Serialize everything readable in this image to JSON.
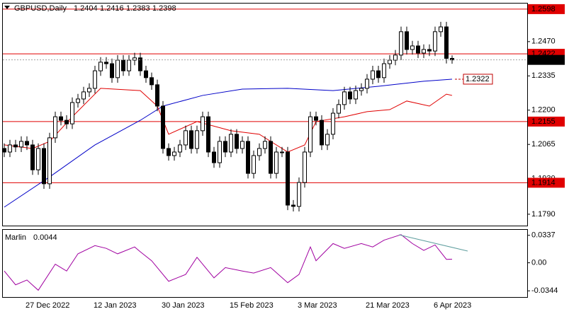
{
  "chart_data": [
    {
      "type": "candlestick",
      "title": "GBPUSD,Daily",
      "categories": [
        null,
        null,
        null,
        null,
        "27 Dec 2022",
        null,
        null,
        null,
        null,
        null,
        null,
        null,
        null,
        null,
        null,
        null,
        "12 Jan 2023",
        null,
        null,
        null,
        null,
        null,
        null,
        null,
        null,
        null,
        null,
        null,
        "30 Jan 2023",
        null,
        null,
        null,
        null,
        null,
        null,
        null,
        null,
        null,
        null,
        null,
        "15 Feb 2023",
        null,
        null,
        null,
        null,
        null,
        null,
        null,
        null,
        null,
        null,
        null,
        "3 Mar 2023",
        null,
        null,
        null,
        null,
        null,
        null,
        null,
        null,
        null,
        null,
        null,
        "21 Mar 2023",
        null,
        null,
        null,
        null,
        null,
        null,
        null,
        null,
        null,
        null,
        null,
        "6 Apr 2023",
        null,
        null,
        null
      ],
      "open": [
        1.2049,
        1.2035,
        1.2063,
        1.2055,
        1.2077,
        1.2063,
        1.1965,
        1.2049,
        1.191,
        1.2091,
        1.2174,
        1.216,
        1.2146,
        1.223,
        1.2244,
        1.2272,
        1.2286,
        1.2355,
        1.2389,
        1.2383,
        1.2328,
        1.2397,
        1.2355,
        1.2397,
        1.2406,
        1.2355,
        1.2328,
        1.23,
        1.2216,
        1.2049,
        1.2021,
        1.2035,
        1.2063,
        1.2119,
        1.2049,
        1.2119,
        1.2174,
        1.2035,
        1.1993,
        1.2077,
        1.2035,
        1.2105,
        1.2049,
        1.2077,
        1.1951,
        1.2021,
        1.2049,
        1.2077,
        1.1951,
        1.2035,
        1.2035,
        1.1826,
        1.1821,
        1.1915,
        1.2035,
        1.2174,
        1.216,
        1.2063,
        1.2105,
        1.2188,
        1.2222,
        1.2272,
        1.2244,
        1.2277,
        1.2286,
        1.2322,
        1.2355,
        1.2328,
        1.2383,
        1.2397,
        1.2417,
        1.2509,
        1.2439,
        1.2453,
        1.2425,
        1.2439,
        1.2433,
        1.2509,
        1.2528,
        1.2404
      ],
      "high": [
        1.2069,
        1.2083,
        1.2083,
        1.2097,
        1.2097,
        1.2083,
        1.2069,
        1.2069,
        1.2111,
        1.2194,
        1.2194,
        1.218,
        1.225,
        1.2264,
        1.2292,
        1.2306,
        1.2375,
        1.2409,
        1.2409,
        1.2403,
        1.2417,
        1.2417,
        1.2417,
        1.2426,
        1.2426,
        1.2375,
        1.2348,
        1.232,
        1.2236,
        1.2069,
        1.2055,
        1.2083,
        1.2139,
        1.2139,
        1.2139,
        1.2194,
        1.2194,
        1.2055,
        1.2097,
        1.2097,
        1.2125,
        1.2125,
        1.2097,
        1.2097,
        1.2041,
        1.2069,
        1.2097,
        1.2097,
        1.2055,
        1.2055,
        1.2055,
        1.1846,
        1.1935,
        1.2055,
        1.2194,
        1.2194,
        1.218,
        1.2125,
        1.2208,
        1.2242,
        1.2292,
        1.2292,
        1.2297,
        1.2306,
        1.2342,
        1.2375,
        1.2375,
        1.2403,
        1.2417,
        1.2437,
        1.2529,
        1.2529,
        1.2473,
        1.2473,
        1.2459,
        1.2459,
        1.2529,
        1.2548,
        1.2548,
        1.2416
      ],
      "low": [
        1.2015,
        1.2015,
        1.2035,
        1.2035,
        1.2043,
        1.1945,
        1.1945,
        1.189,
        1.189,
        1.2071,
        1.214,
        1.2126,
        1.2126,
        1.221,
        1.2224,
        1.2252,
        1.2266,
        1.2335,
        1.2363,
        1.2308,
        1.2308,
        1.2335,
        1.2335,
        1.2377,
        1.2335,
        1.2308,
        1.228,
        1.2196,
        1.2029,
        1.2001,
        1.2001,
        1.2015,
        1.2043,
        1.2029,
        1.2029,
        1.2099,
        1.2015,
        1.1973,
        1.1973,
        1.2015,
        1.2015,
        1.2029,
        1.2029,
        1.1931,
        1.1931,
        1.2001,
        1.2029,
        1.1931,
        1.1931,
        1.2015,
        1.1806,
        1.1801,
        1.1801,
        1.1895,
        1.2015,
        1.214,
        1.2043,
        1.2043,
        1.2085,
        1.2168,
        1.2202,
        1.2224,
        1.2224,
        1.2257,
        1.2266,
        1.2302,
        1.2308,
        1.2308,
        1.2363,
        1.2377,
        1.2397,
        1.2419,
        1.2419,
        1.2405,
        1.2405,
        1.2413,
        1.2413,
        1.2489,
        1.2384,
        1.2383
      ],
      "close": [
        1.2035,
        1.2063,
        1.2055,
        1.2077,
        1.2063,
        1.1965,
        1.2049,
        1.191,
        1.2091,
        1.2174,
        1.216,
        1.2146,
        1.223,
        1.2244,
        1.2272,
        1.2286,
        1.2355,
        1.2389,
        1.2383,
        1.2328,
        1.2397,
        1.2355,
        1.2397,
        1.2406,
        1.2355,
        1.2328,
        1.23,
        1.2216,
        1.2049,
        1.2021,
        1.2035,
        1.2063,
        1.2119,
        1.2049,
        1.2119,
        1.2174,
        1.2035,
        1.1993,
        1.2077,
        1.2035,
        1.2105,
        1.2049,
        1.2077,
        1.1951,
        1.2021,
        1.2049,
        1.2077,
        1.1951,
        1.2035,
        1.2035,
        1.1826,
        1.1821,
        1.1915,
        1.2035,
        1.2174,
        1.216,
        1.2063,
        1.2105,
        1.2188,
        1.2222,
        1.2272,
        1.2244,
        1.2277,
        1.2286,
        1.2322,
        1.2355,
        1.2328,
        1.2383,
        1.2397,
        1.2417,
        1.2509,
        1.2439,
        1.2453,
        1.2425,
        1.2439,
        1.2433,
        1.2509,
        1.2528,
        1.2404,
        1.2398
      ],
      "series": [
        {
          "color": "#0000c8",
          "x": [
            0,
            8,
            16,
            24,
            28,
            35,
            42,
            50,
            58,
            66,
            74,
            79
          ],
          "values": [
            1.1818,
            1.1937,
            1.2063,
            1.216,
            1.2216,
            1.2258,
            1.2283,
            1.2286,
            1.2277,
            1.2294,
            1.2314,
            1.2322
          ]
        },
        {
          "color": "#e00000",
          "x": [
            0,
            5,
            8,
            12,
            17,
            24,
            27,
            29,
            34,
            40,
            45,
            50,
            53,
            55,
            60,
            64,
            68,
            71,
            75,
            78,
            79
          ],
          "values": [
            1.2063,
            1.2049,
            1.2077,
            1.2174,
            1.2286,
            1.2277,
            1.2216,
            1.2105,
            1.2155,
            1.2119,
            1.2105,
            1.2035,
            1.2063,
            1.2155,
            1.2174,
            1.2194,
            1.2202,
            1.2236,
            1.2216,
            1.2263,
            1.2258
          ]
        }
      ],
      "levels": [
        1.2598,
        1.2422,
        1.2155,
        1.1914
      ],
      "level_color": "#e00000",
      "ylim": [
        1.1748,
        1.262
      ],
      "yticks": [
        {
          "value": 1.247,
          "label": "1.2470"
        },
        1.2335,
        {
          "value": 1.22,
          "label": "1.2200"
        },
        1.2065,
        {
          "value": 1.193,
          "label": "1.1930"
        },
        {
          "value": 1.179,
          "label": "1.1790"
        }
      ]
    },
    {
      "type": "line",
      "title": "Marlin",
      "color": "#a000a0",
      "x": [
        0,
        2,
        4,
        6,
        9,
        11,
        13,
        16,
        18,
        20,
        23,
        24,
        26,
        29,
        32,
        34,
        37,
        39,
        42,
        44,
        47,
        50,
        52,
        54,
        55,
        58,
        60,
        63,
        65,
        67,
        70,
        72,
        74,
        76,
        78,
        79
      ],
      "values": [
        -0.0101,
        -0.027,
        -0.0211,
        -0.0337,
        -0.0017,
        -0.0101,
        0.011,
        0.0211,
        0.0177,
        0.011,
        0.0194,
        0.0135,
        0.0025,
        -0.0227,
        -0.0143,
        0.0067,
        -0.0185,
        -0.0059,
        -0.0101,
        -0.0126,
        -0.0059,
        -0.0244,
        -0.0143,
        0.0194,
        0.0025,
        0.0236,
        0.0177,
        0.0236,
        0.0194,
        0.0278,
        0.0345,
        0.0236,
        0.0152,
        0.0219,
        0.0042,
        0.0044
      ],
      "ylim": [
        -0.042,
        0.0404
      ],
      "yticks": [
        0.0337,
        {
          "value": 0,
          "label": "0.00"
        },
        -0.0344
      ]
    }
  ]
}
